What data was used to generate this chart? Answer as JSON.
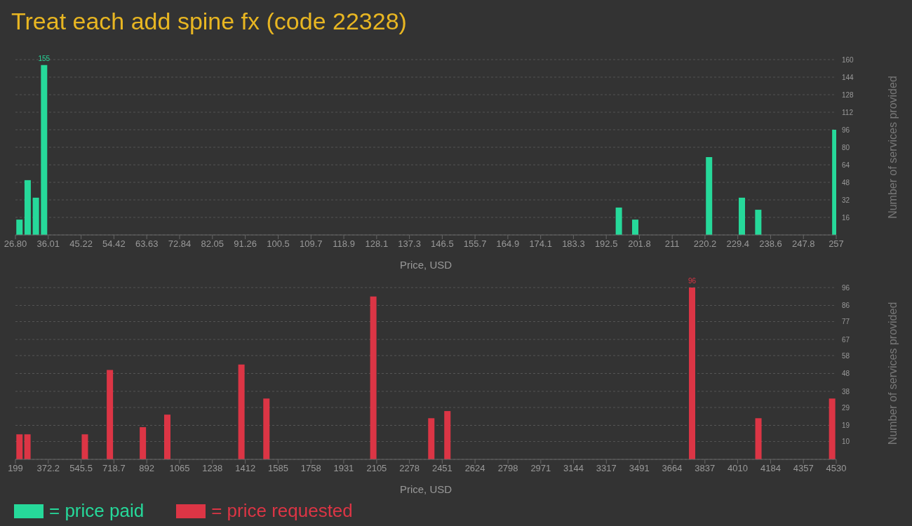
{
  "chart_data": [
    {
      "type": "bar",
      "title": "Treat each add spine fx (code 22328)",
      "xlabel": "Price, USD",
      "ylabel": "Number of services provided",
      "x": [
        28.0,
        30.3,
        32.6,
        34.9,
        196.1,
        200.7,
        221.4,
        230.6,
        235.2,
        256.8
      ],
      "series": [
        {
          "name": "= price paid",
          "color": "#26d99a",
          "values": [
            14,
            50,
            34,
            155,
            25,
            14,
            71,
            34,
            23,
            96
          ],
          "value_labels": [
            null,
            null,
            null,
            "155",
            null,
            null,
            null,
            null,
            null,
            null
          ]
        }
      ],
      "xlim": [
        26.8,
        257
      ],
      "xticks": [
        {
          "value": 26.8,
          "label": "26.80"
        },
        36.01,
        45.22,
        54.42,
        63.63,
        72.84,
        82.05,
        91.26,
        100.5,
        109.7,
        118.9,
        128.1,
        137.3,
        146.5,
        155.7,
        164.9,
        174.1,
        183.3,
        192.5,
        201.8,
        211,
        220.2,
        229.4,
        238.6,
        247.8,
        257
      ],
      "ylim": [
        0,
        160
      ],
      "yticks": [
        16,
        32,
        48,
        64,
        80,
        96,
        112,
        128,
        144,
        160
      ],
      "grid": "y",
      "legend": "bottom left"
    },
    {
      "type": "bar",
      "xlabel": "Price, USD",
      "ylabel": "Number of services provided",
      "x": [
        221,
        263,
        566,
        698,
        872,
        1001,
        1392,
        1524,
        2088,
        2394,
        2479,
        3770,
        4120,
        4509
      ],
      "series": [
        {
          "name": "= price requested",
          "color": "#dc3545",
          "values": [
            14,
            14,
            14,
            50,
            18,
            25,
            53,
            34,
            91,
            23,
            27,
            96,
            23,
            34
          ],
          "value_labels": [
            null,
            null,
            null,
            null,
            null,
            null,
            null,
            null,
            null,
            null,
            null,
            "96",
            null,
            null
          ]
        }
      ],
      "xlim": [
        199,
        4530
      ],
      "xticks": [
        199,
        372.2,
        545.5,
        718.7,
        892,
        1065,
        1238,
        1412,
        1585,
        1758,
        1931,
        2105,
        2278,
        2451,
        2624,
        2798,
        2971,
        3144,
        3317,
        3491,
        3664,
        3837,
        4010,
        4184,
        4357,
        4530
      ],
      "ylim": [
        0,
        96
      ],
      "yticks": [
        10,
        19,
        29,
        38,
        48,
        58,
        67,
        77,
        86,
        96
      ],
      "grid": "y",
      "legend": "bottom left"
    }
  ]
}
